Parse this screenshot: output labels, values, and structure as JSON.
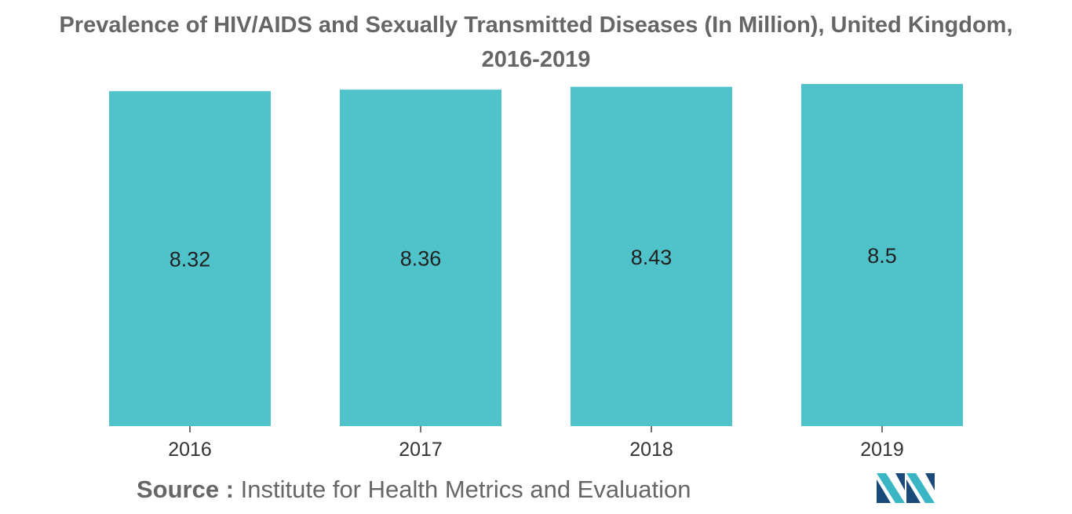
{
  "chart_data": {
    "type": "bar",
    "title_line1": "Prevalence of HIV/AIDS and Sexually Transmitted Diseases (In Million), United Kingdom,",
    "title_line2": "2016-2019",
    "categories": [
      "2016",
      "2017",
      "2018",
      "2019"
    ],
    "values": [
      8.32,
      8.36,
      8.43,
      8.5
    ],
    "value_labels": [
      "8.32",
      "8.36",
      "8.43",
      "8.5"
    ],
    "xlabel": "",
    "ylabel": "",
    "ylim": [
      0,
      8.5
    ],
    "grid": false,
    "legend": "none",
    "bar_color": "#50c2c9"
  },
  "source": {
    "label": "Source :",
    "text": "Institute for Health Metrics and Evaluation"
  },
  "logo": {
    "icon": "mordor-logo-icon",
    "colors": [
      "#1a4a7a",
      "#3ab5c4"
    ]
  }
}
